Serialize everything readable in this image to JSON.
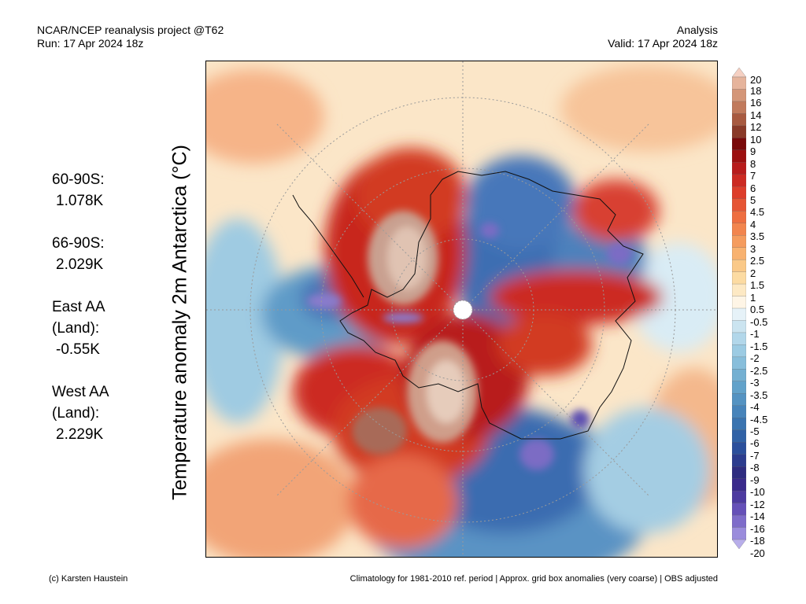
{
  "header": {
    "project": "NCAR/NCEP reanalysis project @T62",
    "run": "Run: 17 Apr 2024 18z",
    "type": "Analysis",
    "valid": "Valid: 17 Apr 2024 18z"
  },
  "y_axis_label": "Temperature anomaly 2m Antarctica (°C)",
  "stats": [
    {
      "label": "60-90S:",
      "value": "1.078K"
    },
    {
      "label": "66-90S:",
      "value": "2.029K"
    },
    {
      "label": "East AA (Land):",
      "value": "-0.55K"
    },
    {
      "label": "West AA (Land):",
      "value": "2.229K"
    }
  ],
  "colorbar": {
    "labels": [
      "20",
      "18",
      "16",
      "14",
      "12",
      "10",
      "9",
      "8",
      "7",
      "6",
      "5",
      "4.5",
      "4",
      "3.5",
      "3",
      "2.5",
      "2",
      "1.5",
      "1",
      "0.5",
      "-0.5",
      "-1",
      "-1.5",
      "-2",
      "-2.5",
      "-3",
      "-3.5",
      "-4",
      "-4.5",
      "-5",
      "-6",
      "-7",
      "-8",
      "-9",
      "-10",
      "-12",
      "-14",
      "-16",
      "-18",
      "-20"
    ],
    "colors": [
      "#f5d0c2",
      "#e6b49c",
      "#d49678",
      "#c17a5c",
      "#a85a40",
      "#8a3a28",
      "#7a0a0a",
      "#9c1010",
      "#b81c1c",
      "#cc2a22",
      "#dd3d2a",
      "#e65534",
      "#ee6e40",
      "#f2854e",
      "#f59c5e",
      "#f8b270",
      "#fac988",
      "#fcdba2",
      "#fde9c4",
      "#fef5e6",
      "#e6f2f8",
      "#cbe4f0",
      "#b2d7ea",
      "#9ccbe3",
      "#88bedb",
      "#74b0d2",
      "#62a2ca",
      "#5493c2",
      "#4784ba",
      "#3a74b0",
      "#3162a6",
      "#2b4f9c",
      "#2c3c8e",
      "#2e2c80",
      "#3a2a8c",
      "#4d3aa0",
      "#6550b8",
      "#7e6cca",
      "#9a8cdc",
      "#b8aeea"
    ]
  },
  "footer": {
    "credit": "(c) Karsten Haustein",
    "note": "Climatology for 1981-2010 ref. period | Approx. grid box anomalies (very coarse) | OBS adjusted"
  }
}
